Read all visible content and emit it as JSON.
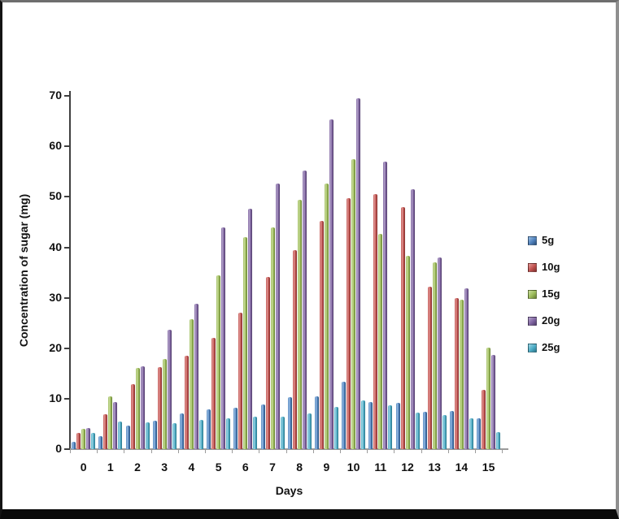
{
  "chart_data": {
    "type": "bar",
    "title": "",
    "xlabel": "Days",
    "ylabel": "Concentration of sugar (mg)",
    "ylim": [
      0,
      70
    ],
    "yticks": [
      0,
      10,
      20,
      30,
      40,
      50,
      60,
      70
    ],
    "grid": false,
    "legend_position": "right",
    "categories": [
      "0",
      "1",
      "2",
      "3",
      "4",
      "5",
      "6",
      "7",
      "8",
      "9",
      "10",
      "11",
      "12",
      "13",
      "14",
      "15"
    ],
    "series": [
      {
        "name": "5g",
        "color": "#4F81BD",
        "color_light": "#9CC0E4",
        "color_dark": "#2B4E75",
        "values": [
          1.4,
          2.6,
          4.7,
          5.6,
          7.1,
          7.9,
          8.2,
          8.8,
          10.3,
          10.5,
          13.3,
          9.3,
          9.2,
          7.4,
          7.5,
          6.1
        ]
      },
      {
        "name": "10g",
        "color": "#C0504D",
        "color_light": "#E29C9A",
        "color_dark": "#7E322F",
        "values": [
          3.2,
          7.0,
          12.9,
          16.2,
          18.5,
          22.0,
          27.0,
          34.2,
          39.4,
          45.3,
          49.7,
          50.6,
          48.0,
          32.2,
          30.0,
          11.7
        ]
      },
      {
        "name": "15g",
        "color": "#9BBB59",
        "color_light": "#CCDD9F",
        "color_dark": "#647B34",
        "values": [
          4.0,
          10.4,
          16.1,
          17.9,
          25.7,
          34.4,
          42.0,
          44.0,
          49.4,
          52.6,
          57.5,
          42.6,
          38.4,
          37.0,
          29.7,
          20.2
        ]
      },
      {
        "name": "20g",
        "color": "#8064A2",
        "color_light": "#B5A6CB",
        "color_dark": "#4F3D68",
        "values": [
          4.2,
          9.3,
          16.5,
          23.6,
          28.9,
          43.9,
          47.6,
          52.7,
          55.2,
          65.3,
          69.6,
          57.0,
          51.5,
          38.0,
          31.9,
          18.7
        ]
      },
      {
        "name": "25g",
        "color": "#4BACC6",
        "color_light": "#9FD4E2",
        "color_dark": "#2C7386",
        "values": [
          3.2,
          5.5,
          5.3,
          5.2,
          5.8,
          6.1,
          6.4,
          6.4,
          7.1,
          8.3,
          9.6,
          8.7,
          7.2,
          6.8,
          6.1,
          3.4
        ]
      }
    ]
  }
}
